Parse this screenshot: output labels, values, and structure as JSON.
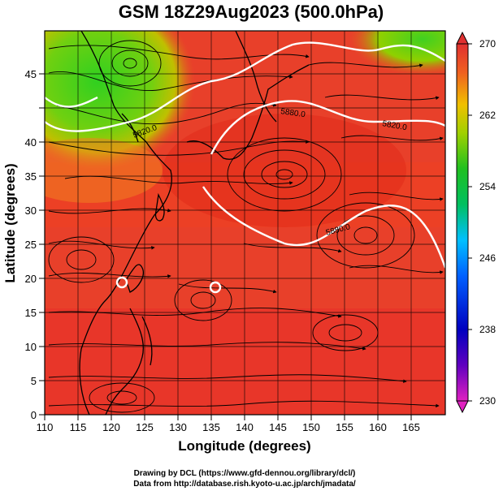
{
  "title": "GSM 18Z29Aug2023 (500.0hPa)",
  "x_axis": {
    "label": "Longitude (degrees)",
    "ticks": [
      "110",
      "115",
      "120",
      "125",
      "130",
      "135",
      "140",
      "145",
      "150",
      "155",
      "160",
      "165"
    ]
  },
  "y_axis": {
    "label": "Latitude  (degrees)",
    "ticks": [
      "0",
      "5",
      "10",
      "15",
      "20",
      "25",
      "30",
      "35",
      "40",
      "45"
    ]
  },
  "colorbar": {
    "ticks": [
      "230",
      "238",
      "246",
      "254",
      "262",
      "270"
    ]
  },
  "contours": [
    {
      "label": "5880.0"
    },
    {
      "label": "5820.0"
    },
    {
      "label": "5880.0"
    },
    {
      "label": "5820.0"
    }
  ],
  "credits": {
    "line1": "Drawing by DCL (https://www.gfd-dennou.org/library/dcl/)",
    "line2": "Data from http://database.rish.kyoto-u.ac.jp/arch/jmadata/"
  },
  "chart_data": {
    "type": "heatmap",
    "title": "GSM 18Z29Aug2023 (500.0hPa)",
    "xlabel": "Longitude (degrees)",
    "ylabel": "Latitude  (degrees)",
    "xlim": [
      110,
      170
    ],
    "ylim": [
      0,
      50
    ],
    "color_range": [
      230,
      270
    ],
    "colorbar_ticks": [
      230,
      238,
      246,
      254,
      262,
      270
    ],
    "colors": {
      "min": "#e020c0",
      "low": "#0000c0",
      "mid_low": "#00c0ff",
      "mid": "#20c020",
      "mid_high": "#f0c000",
      "high": "#e03020"
    },
    "grid": true,
    "contour_labels": [
      "5880.0",
      "5820.0",
      "5880.0",
      "5820.0"
    ]
  }
}
